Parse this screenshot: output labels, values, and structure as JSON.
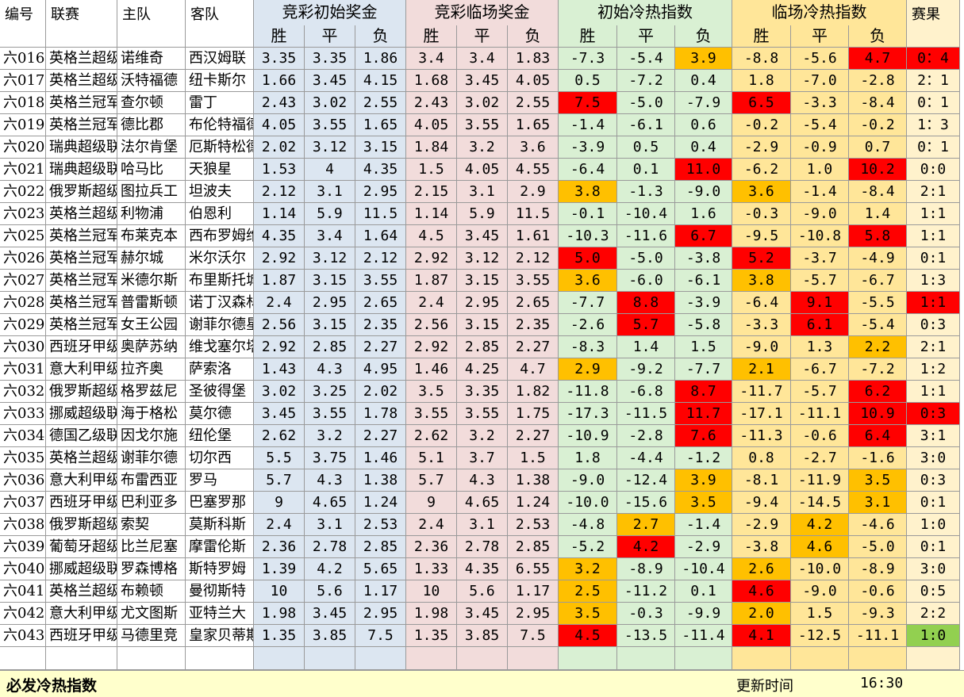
{
  "headers": {
    "id": "编号",
    "league": "联赛",
    "home": "主队",
    "away": "客队",
    "group_initial_odds": "竞彩初始奖金",
    "group_live_odds": "竞彩临场奖金",
    "group_initial_index": "初始冷热指数",
    "group_live_index": "临场冷热指数",
    "result": "赛果",
    "win": "胜",
    "draw": "平",
    "lose": "负"
  },
  "rows": [
    {
      "id": "六016",
      "league": "英格兰超级",
      "home": "诺维奇",
      "away": "西汉姆联",
      "io": [
        "3.35",
        "3.35",
        "1.86"
      ],
      "lo": [
        "3.4",
        "3.4",
        "1.83"
      ],
      "ii": [
        "-7.3",
        "-5.4",
        "3.9"
      ],
      "li": [
        "-8.8",
        "-5.6",
        "4.7"
      ],
      "res": "0：4"
    },
    {
      "id": "六017",
      "league": "英格兰超级",
      "home": "沃特福德",
      "away": "纽卡斯尔",
      "io": [
        "1.66",
        "3.45",
        "4.15"
      ],
      "lo": [
        "1.68",
        "3.45",
        "4.05"
      ],
      "ii": [
        "0.5",
        "-7.2",
        "0.4"
      ],
      "li": [
        "1.8",
        "-7.0",
        "-2.8"
      ],
      "res": "2：1"
    },
    {
      "id": "六018",
      "league": "英格兰冠军",
      "home": "查尔顿",
      "away": "雷丁",
      "io": [
        "2.43",
        "3.02",
        "2.55"
      ],
      "lo": [
        "2.43",
        "3.02",
        "2.55"
      ],
      "ii": [
        "7.5",
        "-5.0",
        "-7.9"
      ],
      "li": [
        "6.5",
        "-3.3",
        "-8.4"
      ],
      "res": "0：1"
    },
    {
      "id": "六019",
      "league": "英格兰冠军",
      "home": "德比郡",
      "away": "布伦特福德",
      "io": [
        "4.05",
        "3.55",
        "1.65"
      ],
      "lo": [
        "4.05",
        "3.55",
        "1.65"
      ],
      "ii": [
        "-1.4",
        "-6.1",
        "0.6"
      ],
      "li": [
        "-0.2",
        "-5.4",
        "-0.2"
      ],
      "res": "1：3"
    },
    {
      "id": "六020",
      "league": "瑞典超级联",
      "home": "法尔肯堡",
      "away": "厄斯特松德",
      "io": [
        "2.02",
        "3.12",
        "3.15"
      ],
      "lo": [
        "1.84",
        "3.2",
        "3.6"
      ],
      "ii": [
        "-3.9",
        "0.5",
        "0.4"
      ],
      "li": [
        "-2.9",
        "-0.9",
        "0.7"
      ],
      "res": "0：1"
    },
    {
      "id": "六021",
      "league": "瑞典超级联",
      "home": "哈马比",
      "away": "天狼星",
      "io": [
        "1.53",
        "4",
        "4.35"
      ],
      "lo": [
        "1.5",
        "4.05",
        "4.55"
      ],
      "ii": [
        "-6.4",
        "0.1",
        "11.0"
      ],
      "li": [
        "-6.2",
        "1.0",
        "10.2"
      ],
      "res": "0:0"
    },
    {
      "id": "六022",
      "league": "俄罗斯超级",
      "home": "图拉兵工",
      "away": "坦波夫",
      "io": [
        "2.12",
        "3.1",
        "2.95"
      ],
      "lo": [
        "2.15",
        "3.1",
        "2.9"
      ],
      "ii": [
        "3.8",
        "-1.3",
        "-9.0"
      ],
      "li": [
        "3.6",
        "-1.4",
        "-8.4"
      ],
      "res": "2:1"
    },
    {
      "id": "六023",
      "league": "英格兰超级",
      "home": "利物浦",
      "away": "伯恩利",
      "io": [
        "1.14",
        "5.9",
        "11.5"
      ],
      "lo": [
        "1.14",
        "5.9",
        "11.5"
      ],
      "ii": [
        "-0.1",
        "-10.4",
        "1.6"
      ],
      "li": [
        "-0.3",
        "-9.0",
        "1.4"
      ],
      "res": "1:1"
    },
    {
      "id": "六025",
      "league": "英格兰冠军",
      "home": "布莱克本",
      "away": "西布罗姆维",
      "io": [
        "4.35",
        "3.4",
        "1.64"
      ],
      "lo": [
        "4.5",
        "3.45",
        "1.61"
      ],
      "ii": [
        "-10.3",
        "-11.6",
        "6.7"
      ],
      "li": [
        "-9.5",
        "-10.8",
        "5.8"
      ],
      "res": "1:1"
    },
    {
      "id": "六026",
      "league": "英格兰冠军",
      "home": "赫尔城",
      "away": "米尔沃尔",
      "io": [
        "2.92",
        "3.12",
        "2.12"
      ],
      "lo": [
        "2.92",
        "3.12",
        "2.12"
      ],
      "ii": [
        "5.0",
        "-5.0",
        "-3.8"
      ],
      "li": [
        "5.2",
        "-3.7",
        "-4.9"
      ],
      "res": "0:1"
    },
    {
      "id": "六027",
      "league": "英格兰冠军",
      "home": "米德尔斯",
      "away": "布里斯托城",
      "io": [
        "1.87",
        "3.15",
        "3.55"
      ],
      "lo": [
        "1.87",
        "3.15",
        "3.55"
      ],
      "ii": [
        "3.6",
        "-6.0",
        "-6.1"
      ],
      "li": [
        "3.8",
        "-5.7",
        "-6.7"
      ],
      "res": "1:3"
    },
    {
      "id": "六028",
      "league": "英格兰冠军",
      "home": "普雷斯顿",
      "away": "诺丁汉森林",
      "io": [
        "2.4",
        "2.95",
        "2.65"
      ],
      "lo": [
        "2.4",
        "2.95",
        "2.65"
      ],
      "ii": [
        "-7.7",
        "8.8",
        "-3.9"
      ],
      "li": [
        "-6.4",
        "9.1",
        "-5.5"
      ],
      "res": "1:1"
    },
    {
      "id": "六029",
      "league": "英格兰冠军",
      "home": "女王公园",
      "away": "谢菲尔德星",
      "io": [
        "2.56",
        "3.15",
        "2.35"
      ],
      "lo": [
        "2.56",
        "3.15",
        "2.35"
      ],
      "ii": [
        "-2.6",
        "5.7",
        "-5.8"
      ],
      "li": [
        "-3.3",
        "6.1",
        "-5.4"
      ],
      "res": "0:3"
    },
    {
      "id": "六030",
      "league": "西班牙甲级",
      "home": "奥萨苏纳",
      "away": "维戈塞尔塔",
      "io": [
        "2.92",
        "2.85",
        "2.27"
      ],
      "lo": [
        "2.92",
        "2.85",
        "2.27"
      ],
      "ii": [
        "-8.3",
        "1.4",
        "1.5"
      ],
      "li": [
        "-9.0",
        "1.3",
        "2.2"
      ],
      "res": "2:1"
    },
    {
      "id": "六031",
      "league": "意大利甲级",
      "home": "拉齐奥",
      "away": "萨索洛",
      "io": [
        "1.43",
        "4.3",
        "4.95"
      ],
      "lo": [
        "1.46",
        "4.25",
        "4.7"
      ],
      "ii": [
        "2.9",
        "-9.2",
        "-7.7"
      ],
      "li": [
        "2.1",
        "-6.7",
        "-7.2"
      ],
      "res": "1:2"
    },
    {
      "id": "六032",
      "league": "俄罗斯超级",
      "home": "格罗兹尼",
      "away": "圣彼得堡",
      "io": [
        "3.02",
        "3.25",
        "2.02"
      ],
      "lo": [
        "3.5",
        "3.35",
        "1.82"
      ],
      "ii": [
        "-11.8",
        "-6.8",
        "8.7"
      ],
      "li": [
        "-11.7",
        "-5.7",
        "6.2"
      ],
      "res": "1:1"
    },
    {
      "id": "六033",
      "league": "挪威超级联",
      "home": "海于格松",
      "away": "莫尔德",
      "io": [
        "3.45",
        "3.55",
        "1.78"
      ],
      "lo": [
        "3.55",
        "3.55",
        "1.75"
      ],
      "ii": [
        "-17.3",
        "-11.5",
        "11.7"
      ],
      "li": [
        "-17.1",
        "-11.1",
        "10.9"
      ],
      "res": "0:3"
    },
    {
      "id": "六034",
      "league": "德国乙级联",
      "home": "因戈尔施",
      "away": "纽伦堡",
      "io": [
        "2.62",
        "3.2",
        "2.27"
      ],
      "lo": [
        "2.62",
        "3.2",
        "2.27"
      ],
      "ii": [
        "-10.9",
        "-2.8",
        "7.6"
      ],
      "li": [
        "-11.3",
        "-0.6",
        "6.4"
      ],
      "res": "3:1"
    },
    {
      "id": "六035",
      "league": "英格兰超级",
      "home": "谢菲尔德",
      "away": "切尔西",
      "io": [
        "5.5",
        "3.75",
        "1.46"
      ],
      "lo": [
        "5.1",
        "3.7",
        "1.5"
      ],
      "ii": [
        "1.8",
        "-4.4",
        "-1.2"
      ],
      "li": [
        "0.8",
        "-2.7",
        "-1.6"
      ],
      "res": "3:0"
    },
    {
      "id": "六036",
      "league": "意大利甲级",
      "home": "布雷西亚",
      "away": "罗马",
      "io": [
        "5.7",
        "4.3",
        "1.38"
      ],
      "lo": [
        "5.7",
        "4.3",
        "1.38"
      ],
      "ii": [
        "-9.0",
        "-12.4",
        "3.9"
      ],
      "li": [
        "-8.1",
        "-11.9",
        "3.5"
      ],
      "res": "0:3"
    },
    {
      "id": "六037",
      "league": "西班牙甲级",
      "home": "巴利亚多",
      "away": "巴塞罗那",
      "io": [
        "9",
        "4.65",
        "1.24"
      ],
      "lo": [
        "9",
        "4.65",
        "1.24"
      ],
      "ii": [
        "-10.0",
        "-15.6",
        "3.5"
      ],
      "li": [
        "-9.4",
        "-14.5",
        "3.1"
      ],
      "res": "0:1"
    },
    {
      "id": "六038",
      "league": "俄罗斯超级",
      "home": "索契",
      "away": "莫斯科斯",
      "io": [
        "2.4",
        "3.1",
        "2.53"
      ],
      "lo": [
        "2.4",
        "3.1",
        "2.53"
      ],
      "ii": [
        "-4.8",
        "2.7",
        "-1.4"
      ],
      "li": [
        "-2.9",
        "4.2",
        "-4.6"
      ],
      "res": "1:0"
    },
    {
      "id": "六039",
      "league": "葡萄牙超级",
      "home": "比兰尼塞",
      "away": "摩雷伦斯",
      "io": [
        "2.36",
        "2.78",
        "2.85"
      ],
      "lo": [
        "2.36",
        "2.78",
        "2.85"
      ],
      "ii": [
        "-5.2",
        "4.2",
        "-2.9"
      ],
      "li": [
        "-3.8",
        "4.6",
        "-5.0"
      ],
      "res": "0:1"
    },
    {
      "id": "六040",
      "league": "挪威超级联",
      "home": "罗森博格",
      "away": "斯特罗姆",
      "io": [
        "1.39",
        "4.2",
        "5.65"
      ],
      "lo": [
        "1.33",
        "4.35",
        "6.55"
      ],
      "ii": [
        "3.2",
        "-8.9",
        "-10.4"
      ],
      "li": [
        "2.6",
        "-10.0",
        "-8.9"
      ],
      "res": "3:0"
    },
    {
      "id": "六041",
      "league": "英格兰超级",
      "home": "布赖顿",
      "away": "曼彻斯特",
      "io": [
        "10",
        "5.6",
        "1.17"
      ],
      "lo": [
        "10",
        "5.6",
        "1.17"
      ],
      "ii": [
        "2.5",
        "-11.2",
        "0.1"
      ],
      "li": [
        "4.6",
        "-9.0",
        "-0.6"
      ],
      "res": "0:5"
    },
    {
      "id": "六042",
      "league": "意大利甲级",
      "home": "尤文图斯",
      "away": "亚特兰大",
      "io": [
        "1.98",
        "3.45",
        "2.95"
      ],
      "lo": [
        "1.98",
        "3.45",
        "2.95"
      ],
      "ii": [
        "3.5",
        "-0.3",
        "-9.9"
      ],
      "li": [
        "2.0",
        "1.5",
        "-9.3"
      ],
      "res": "2:2"
    },
    {
      "id": "六043",
      "league": "西班牙甲级",
      "home": "马德里竞",
      "away": "皇家贝蒂斯",
      "io": [
        "1.35",
        "3.85",
        "7.5"
      ],
      "lo": [
        "1.35",
        "3.85",
        "7.5"
      ],
      "ii": [
        "4.5",
        "-13.5",
        "-11.4"
      ],
      "li": [
        "4.1",
        "-12.5",
        "-11.1"
      ],
      "res": "1:0"
    }
  ],
  "highlights": {
    "ii": {
      "red": [
        [
          2,
          0
        ],
        [
          5,
          2
        ],
        [
          8,
          2
        ],
        [
          9,
          0
        ],
        [
          11,
          1
        ],
        [
          12,
          1
        ],
        [
          15,
          2
        ],
        [
          16,
          2
        ],
        [
          17,
          2
        ],
        [
          22,
          1
        ],
        [
          26,
          0
        ]
      ],
      "orange": [
        [
          0,
          2
        ],
        [
          6,
          0
        ],
        [
          10,
          0
        ],
        [
          14,
          0
        ],
        [
          19,
          2
        ],
        [
          20,
          2
        ],
        [
          21,
          1
        ],
        [
          23,
          0
        ],
        [
          24,
          0
        ],
        [
          25,
          0
        ]
      ]
    },
    "li": {
      "red": [
        [
          0,
          2
        ],
        [
          2,
          0
        ],
        [
          5,
          2
        ],
        [
          8,
          2
        ],
        [
          9,
          0
        ],
        [
          11,
          1
        ],
        [
          12,
          1
        ],
        [
          15,
          2
        ],
        [
          16,
          2
        ],
        [
          17,
          2
        ],
        [
          24,
          0
        ],
        [
          26,
          0
        ]
      ],
      "orange": [
        [
          6,
          0
        ],
        [
          10,
          0
        ],
        [
          13,
          2
        ],
        [
          14,
          0
        ],
        [
          19,
          2
        ],
        [
          20,
          2
        ],
        [
          21,
          1
        ],
        [
          22,
          1
        ],
        [
          23,
          0
        ],
        [
          25,
          0
        ]
      ]
    },
    "res": {
      "red": [
        0,
        11,
        16
      ],
      "green": [
        26
      ]
    }
  },
  "footer": {
    "title": "必发冷热指数",
    "update_label": "更新时间",
    "update_time": "16:30"
  },
  "colors": {
    "red": "#ff0000",
    "orange": "#ffc000",
    "green": "#92d050",
    "pink": "#f2dcdb",
    "blue": "#dce6f1",
    "lightgreen": "#d9f0d3",
    "yellow": "#ffe699"
  }
}
